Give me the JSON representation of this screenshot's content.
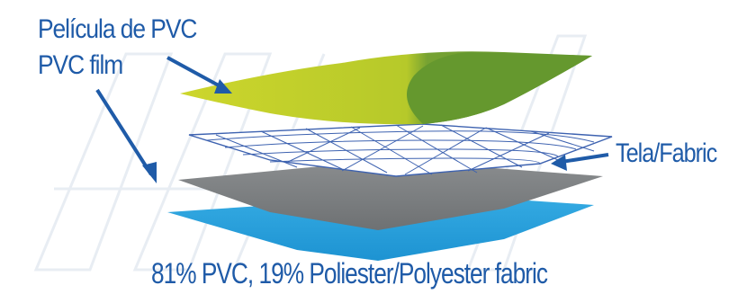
{
  "labels": {
    "pvc_film_es": "Película de PVC",
    "pvc_film_en": "PVC film",
    "fabric": "Tela/Fabric",
    "composition": "81% PVC, 19% Poliester/Polyester fabric"
  },
  "layers": [
    {
      "name": "pvc-film-top",
      "colors": [
        "#c6d12a",
        "#6a9c2e"
      ]
    },
    {
      "name": "fabric-mesh",
      "colors": [
        "#3d62b0"
      ]
    },
    {
      "name": "pvc-film-middle",
      "colors": [
        "#7b7e80"
      ]
    },
    {
      "name": "pvc-film-bottom",
      "colors": [
        "#2aa1de"
      ]
    }
  ],
  "colors": {
    "label_text": "#1f5ba8",
    "arrow": "#1f5ba8",
    "watermark": "#eef2f6"
  }
}
